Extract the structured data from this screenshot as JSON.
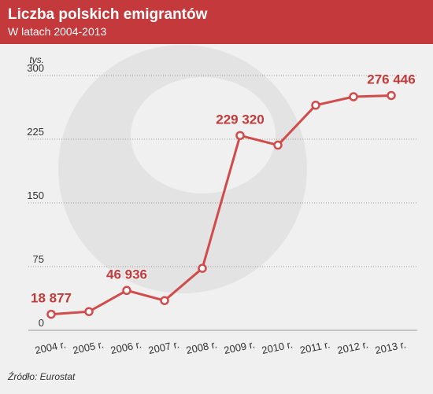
{
  "header": {
    "title": "Liczba polskich emigrantów",
    "subtitle": "W latach 2004-2013"
  },
  "footer": {
    "source": "Źródło: Eurostat"
  },
  "colors": {
    "accent": "#c4393b",
    "line": "#d14b4b",
    "label": "#c23a3a",
    "background": "#f0f0f0",
    "watermark": "#e3e3e3"
  },
  "chart_data": {
    "type": "line",
    "title": "Liczba polskich emigrantów",
    "subtitle": "W latach 2004-2013",
    "unit_label": "tys.",
    "categories": [
      "2004 r.",
      "2005 r.",
      "2006 r.",
      "2007 r.",
      "2008 r.",
      "2009 r.",
      "2010 r.",
      "2011 r.",
      "2012 r.",
      "2013 r."
    ],
    "values": [
      18.877,
      22,
      46.936,
      35,
      73,
      229.32,
      218,
      265,
      275,
      276.446
    ],
    "ylim": [
      0,
      300
    ],
    "yticks": [
      0,
      75,
      150,
      225,
      300
    ],
    "grid": true,
    "data_labels": [
      {
        "index": 0,
        "text": "18 877"
      },
      {
        "index": 2,
        "text": "46 936"
      },
      {
        "index": 5,
        "text": "229 320"
      },
      {
        "index": 9,
        "text": "276 446"
      }
    ]
  }
}
